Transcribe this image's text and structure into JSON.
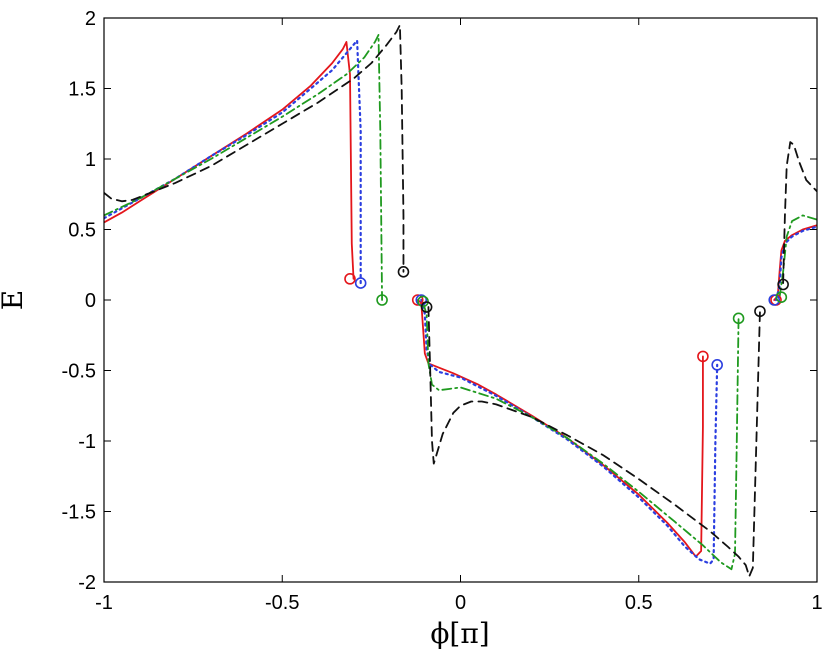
{
  "chart_data": {
    "type": "line",
    "title": "",
    "xlabel": "ϕ[π]",
    "ylabel": "E",
    "xlim": [
      -1,
      1
    ],
    "ylim": [
      -2,
      2
    ],
    "xticks": [
      "-1",
      "-0.5",
      "0",
      "0.5",
      "1"
    ],
    "yticks": [
      "-2",
      "-1.5",
      "-1",
      "-0.5",
      "0",
      "0.5",
      "1",
      "1.5",
      "2"
    ],
    "xtick_values": [
      -1,
      -0.5,
      0,
      0.5,
      1
    ],
    "ytick_values": [
      -2,
      -1.5,
      -1,
      -0.5,
      0,
      0.5,
      1,
      1.5,
      2
    ],
    "grid": false,
    "legend": "none",
    "series": [
      {
        "color": "#e4161b",
        "style": "solid",
        "points": [
          [
            -1,
            0.55
          ],
          [
            -0.95,
            0.62
          ],
          [
            -0.9,
            0.7
          ],
          [
            -0.85,
            0.78
          ],
          [
            -0.8,
            0.86
          ],
          [
            -0.7,
            1.02
          ],
          [
            -0.6,
            1.18
          ],
          [
            -0.5,
            1.35
          ],
          [
            -0.42,
            1.52
          ],
          [
            -0.36,
            1.68
          ],
          [
            -0.33,
            1.78
          ],
          [
            -0.32,
            1.83
          ],
          [
            -0.31,
            1.6
          ],
          [
            -0.305,
            0.4
          ],
          [
            -0.3,
            0.15
          ],
          null,
          [
            -0.12,
            0.0
          ],
          [
            -0.11,
            -0.02
          ],
          [
            -0.105,
            -0.2
          ],
          [
            -0.1,
            -0.38
          ],
          [
            -0.09,
            -0.45
          ],
          [
            -0.06,
            -0.48
          ],
          [
            -0.02,
            -0.52
          ],
          [
            0.05,
            -0.6
          ],
          [
            0.1,
            -0.67
          ],
          [
            0.2,
            -0.82
          ],
          [
            0.3,
            -0.98
          ],
          [
            0.4,
            -1.17
          ],
          [
            0.5,
            -1.38
          ],
          [
            0.58,
            -1.58
          ],
          [
            0.63,
            -1.72
          ],
          [
            0.66,
            -1.82
          ],
          [
            0.675,
            -1.78
          ],
          [
            0.68,
            -0.9
          ],
          [
            0.68,
            -0.4
          ],
          null,
          [
            0.88,
            0.0
          ],
          [
            0.89,
            0.03
          ],
          [
            0.895,
            0.2
          ],
          [
            0.9,
            0.35
          ],
          [
            0.91,
            0.42
          ],
          [
            0.93,
            0.46
          ],
          [
            0.96,
            0.5
          ],
          [
            1,
            0.53
          ]
        ]
      },
      {
        "color": "#2c3fe0",
        "style": "dotted",
        "points": [
          [
            -1,
            0.58
          ],
          [
            -0.9,
            0.72
          ],
          [
            -0.8,
            0.86
          ],
          [
            -0.7,
            1.02
          ],
          [
            -0.6,
            1.17
          ],
          [
            -0.5,
            1.33
          ],
          [
            -0.42,
            1.5
          ],
          [
            -0.36,
            1.63
          ],
          [
            -0.32,
            1.75
          ],
          [
            -0.3,
            1.81
          ],
          [
            -0.29,
            1.84
          ],
          [
            -0.28,
            1.2
          ],
          [
            -0.28,
            0.12
          ],
          null,
          [
            -0.11,
            0.0
          ],
          [
            -0.1,
            -0.1
          ],
          [
            -0.095,
            -0.35
          ],
          [
            -0.085,
            -0.46
          ],
          [
            -0.06,
            -0.51
          ],
          [
            0.0,
            -0.55
          ],
          [
            0.1,
            -0.68
          ],
          [
            0.2,
            -0.83
          ],
          [
            0.3,
            -0.99
          ],
          [
            0.4,
            -1.18
          ],
          [
            0.5,
            -1.4
          ],
          [
            0.58,
            -1.6
          ],
          [
            0.63,
            -1.75
          ],
          [
            0.67,
            -1.84
          ],
          [
            0.7,
            -1.87
          ],
          [
            0.71,
            -1.84
          ],
          [
            0.715,
            -1.0
          ],
          [
            0.72,
            -0.46
          ],
          null,
          [
            0.885,
            0.0
          ],
          [
            0.895,
            0.1
          ],
          [
            0.9,
            0.3
          ],
          [
            0.91,
            0.4
          ],
          [
            0.93,
            0.45
          ],
          [
            0.96,
            0.49
          ],
          [
            1,
            0.52
          ]
        ]
      },
      {
        "color": "#1f9a1f",
        "style": "dashdot",
        "points": [
          [
            -1,
            0.6
          ],
          [
            -0.95,
            0.66
          ],
          [
            -0.9,
            0.72
          ],
          [
            -0.8,
            0.86
          ],
          [
            -0.7,
            1.0
          ],
          [
            -0.6,
            1.15
          ],
          [
            -0.5,
            1.3
          ],
          [
            -0.4,
            1.46
          ],
          [
            -0.32,
            1.6
          ],
          [
            -0.27,
            1.72
          ],
          [
            -0.24,
            1.83
          ],
          [
            -0.23,
            1.88
          ],
          [
            -0.225,
            1.2
          ],
          [
            -0.22,
            0.0
          ],
          null,
          [
            -0.105,
            -0.02
          ],
          [
            -0.095,
            -0.1
          ],
          [
            -0.09,
            -0.45
          ],
          [
            -0.08,
            -0.6
          ],
          [
            -0.06,
            -0.64
          ],
          [
            -0.03,
            -0.63
          ],
          [
            0.0,
            -0.62
          ],
          [
            0.1,
            -0.7
          ],
          [
            0.2,
            -0.83
          ],
          [
            0.3,
            -0.98
          ],
          [
            0.4,
            -1.16
          ],
          [
            0.5,
            -1.36
          ],
          [
            0.6,
            -1.57
          ],
          [
            0.68,
            -1.74
          ],
          [
            0.73,
            -1.86
          ],
          [
            0.76,
            -1.91
          ],
          [
            0.77,
            -1.8
          ],
          [
            0.775,
            -1.0
          ],
          [
            0.78,
            -0.13
          ],
          null,
          [
            0.895,
            0.02
          ],
          [
            0.905,
            0.2
          ],
          [
            0.915,
            0.45
          ],
          [
            0.93,
            0.56
          ],
          [
            0.96,
            0.6
          ],
          [
            1,
            0.57
          ]
        ]
      },
      {
        "color": "#111111",
        "style": "dashed",
        "points": [
          [
            -1,
            0.76
          ],
          [
            -0.98,
            0.72
          ],
          [
            -0.95,
            0.7
          ],
          [
            -0.92,
            0.71
          ],
          [
            -0.88,
            0.75
          ],
          [
            -0.8,
            0.83
          ],
          [
            -0.7,
            0.95
          ],
          [
            -0.6,
            1.1
          ],
          [
            -0.5,
            1.25
          ],
          [
            -0.4,
            1.4
          ],
          [
            -0.3,
            1.57
          ],
          [
            -0.25,
            1.68
          ],
          [
            -0.21,
            1.8
          ],
          [
            -0.18,
            1.9
          ],
          [
            -0.17,
            1.95
          ],
          [
            -0.165,
            1.5
          ],
          [
            -0.16,
            0.6
          ],
          [
            -0.16,
            0.2
          ],
          null,
          [
            -0.09,
            -0.05
          ],
          [
            -0.085,
            -0.5
          ],
          [
            -0.08,
            -1.0
          ],
          [
            -0.075,
            -1.16
          ],
          [
            -0.07,
            -1.12
          ],
          [
            -0.05,
            -0.95
          ],
          [
            -0.02,
            -0.8
          ],
          [
            0.0,
            -0.75
          ],
          [
            0.03,
            -0.72
          ],
          [
            0.06,
            -0.72
          ],
          [
            0.1,
            -0.74
          ],
          [
            0.2,
            -0.83
          ],
          [
            0.3,
            -0.96
          ],
          [
            0.4,
            -1.1
          ],
          [
            0.5,
            -1.27
          ],
          [
            0.6,
            -1.45
          ],
          [
            0.7,
            -1.64
          ],
          [
            0.75,
            -1.75
          ],
          [
            0.78,
            -1.82
          ],
          [
            0.8,
            -1.88
          ],
          [
            0.81,
            -1.96
          ],
          [
            0.82,
            -1.9
          ],
          [
            0.83,
            -1.0
          ],
          [
            0.84,
            -0.08
          ],
          null,
          [
            0.905,
            0.12
          ],
          [
            0.91,
            0.6
          ],
          [
            0.915,
            0.95
          ],
          [
            0.925,
            1.12
          ],
          [
            0.935,
            1.1
          ],
          [
            0.95,
            0.98
          ],
          [
            0.97,
            0.85
          ],
          [
            1,
            0.77
          ]
        ]
      }
    ],
    "markers": [
      {
        "color": "#e4161b",
        "points": [
          [
            -0.31,
            0.15
          ],
          [
            -0.12,
            0.0
          ],
          [
            0.68,
            -0.4
          ],
          [
            0.885,
            0.0
          ]
        ]
      },
      {
        "color": "#2c3fe0",
        "points": [
          [
            -0.28,
            0.12
          ],
          [
            -0.11,
            0.0
          ],
          [
            0.72,
            -0.46
          ],
          [
            0.88,
            0.0
          ]
        ]
      },
      {
        "color": "#1f9a1f",
        "points": [
          [
            -0.22,
            0.0
          ],
          [
            -0.105,
            -0.01
          ],
          [
            0.78,
            -0.13
          ],
          [
            0.9,
            0.02
          ]
        ]
      },
      {
        "color": "#111111",
        "points": [
          [
            -0.16,
            0.2
          ],
          [
            -0.095,
            -0.05
          ],
          [
            0.84,
            -0.08
          ],
          [
            0.905,
            0.11
          ]
        ]
      }
    ]
  }
}
